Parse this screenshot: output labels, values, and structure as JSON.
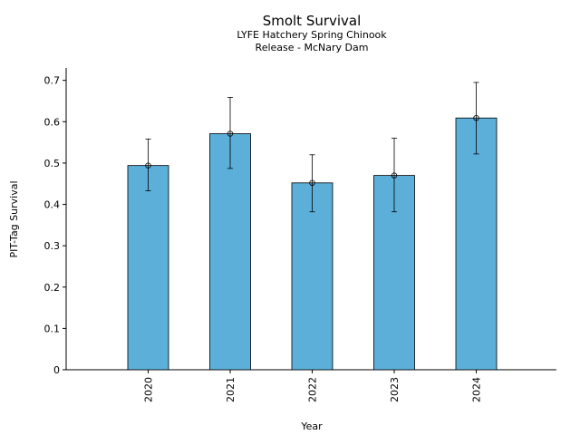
{
  "chart_data": {
    "type": "bar",
    "title": "Smolt Survival",
    "subtitle_lines": [
      "LYFE Hatchery Spring Chinook",
      "Release - McNary Dam"
    ],
    "xlabel": "Year",
    "ylabel": "PIT-Tag Survival",
    "categories": [
      "2020",
      "2021",
      "2022",
      "2023",
      "2024"
    ],
    "values": [
      0.494,
      0.571,
      0.452,
      0.47,
      0.609
    ],
    "error_low": [
      0.433,
      0.487,
      0.382,
      0.382,
      0.522
    ],
    "error_high": [
      0.558,
      0.659,
      0.52,
      0.56,
      0.695
    ],
    "ylim": [
      0,
      0.73
    ],
    "yticks": [
      0,
      0.1,
      0.2,
      0.3,
      0.4,
      0.5,
      0.6,
      0.7
    ],
    "ytick_labels": [
      "0",
      "0.1",
      "0.2",
      "0.3",
      "0.4",
      "0.5",
      "0.6",
      "0.7"
    ],
    "bar_color": "#5bafd9",
    "grid": false,
    "legend": "none"
  }
}
